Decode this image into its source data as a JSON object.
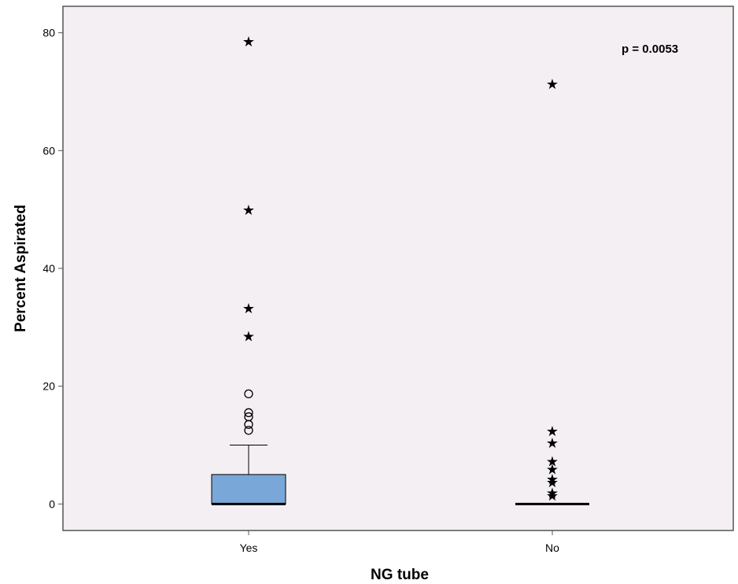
{
  "chart_data": {
    "type": "boxplot",
    "xlabel": "NG tube",
    "ylabel": "Percent Aspirated",
    "annotation": "p = 0.0053",
    "ylim": [
      -4.5,
      84.5
    ],
    "yticks": [
      0,
      20,
      40,
      60,
      80
    ],
    "grid": false,
    "colors": {
      "plot_bg": "#f4eff3",
      "box_fill": "#79a7d8",
      "frame": "#555555"
    },
    "categories": [
      "Yes",
      "No"
    ],
    "groups": [
      {
        "category": "Yes",
        "whisker_low": 0,
        "q1": 0,
        "median": 0,
        "q3": 5,
        "whisker_high": 10,
        "outliers": [
          12.5,
          13.5,
          14.8,
          15.5,
          18.7
        ],
        "extremes": [
          28.6,
          33.3,
          50,
          78.6
        ]
      },
      {
        "category": "No",
        "whisker_low": 0,
        "q1": 0,
        "median": 0,
        "q3": 0,
        "whisker_high": 0,
        "outliers": [],
        "extremes": [
          1.5,
          2.0,
          3.8,
          4.3,
          6.0,
          7.3,
          10.5,
          12.5,
          71.4
        ]
      }
    ]
  }
}
